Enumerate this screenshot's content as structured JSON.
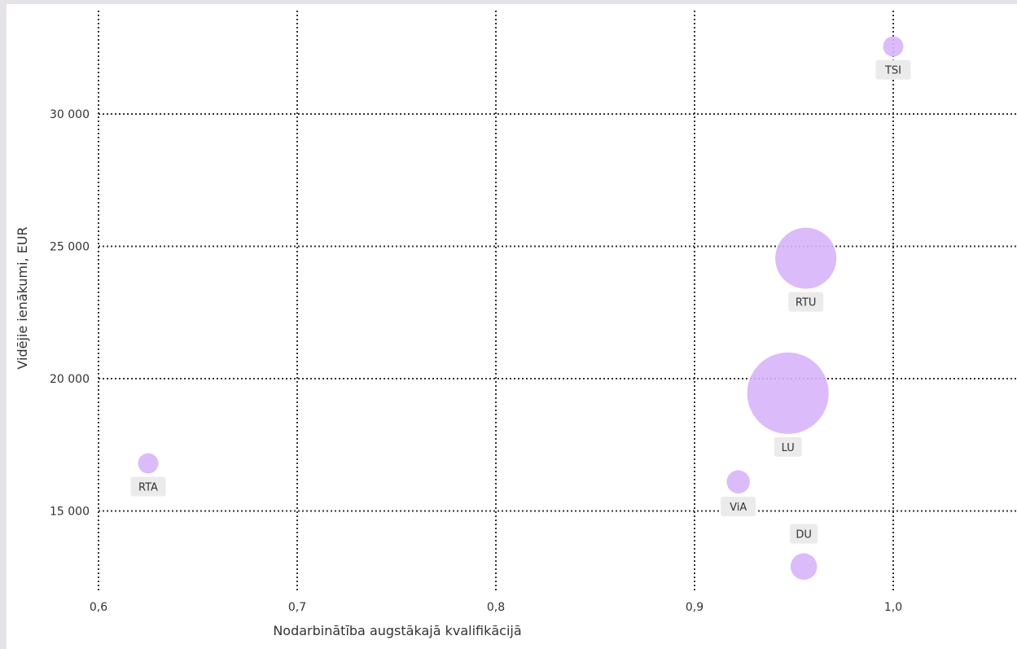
{
  "chart_data": {
    "type": "scatter",
    "variant": "bubble",
    "xlabel": "Nodarbinātība augstākajā kvalifikācijā",
    "ylabel": "Vidējie ienākumi, EUR",
    "xlim": [
      0.6,
      1.06
    ],
    "ylim": [
      11900,
      34000
    ],
    "x_ticks": [
      0.6,
      0.7,
      0.8,
      0.9,
      1.0
    ],
    "x_tick_labels": [
      "0,6",
      "0,7",
      "0,8",
      "0,9",
      "1,0"
    ],
    "y_ticks": [
      15000,
      20000,
      25000,
      30000
    ],
    "y_tick_labels": [
      "15 000",
      "20 000",
      "25 000",
      "30 000"
    ],
    "grid": true,
    "bubble_color": "#d7b4fa",
    "label_bg": "#ebebeb",
    "points": [
      {
        "label": "TSI",
        "x": 1.0,
        "y": 32550,
        "size": 1.0,
        "label_pos": "below"
      },
      {
        "label": "RTU",
        "x": 0.956,
        "y": 24550,
        "size": 9.0,
        "label_pos": "below"
      },
      {
        "label": "LU",
        "x": 0.947,
        "y": 19450,
        "size": 16.0,
        "label_pos": "below"
      },
      {
        "label": "RTA",
        "x": 0.625,
        "y": 16800,
        "size": 1.0,
        "label_pos": "below"
      },
      {
        "label": "ViA",
        "x": 0.922,
        "y": 16100,
        "size": 1.3,
        "label_pos": "below"
      },
      {
        "label": "DU",
        "x": 0.955,
        "y": 12900,
        "size": 1.7,
        "label_pos": "above"
      }
    ]
  }
}
